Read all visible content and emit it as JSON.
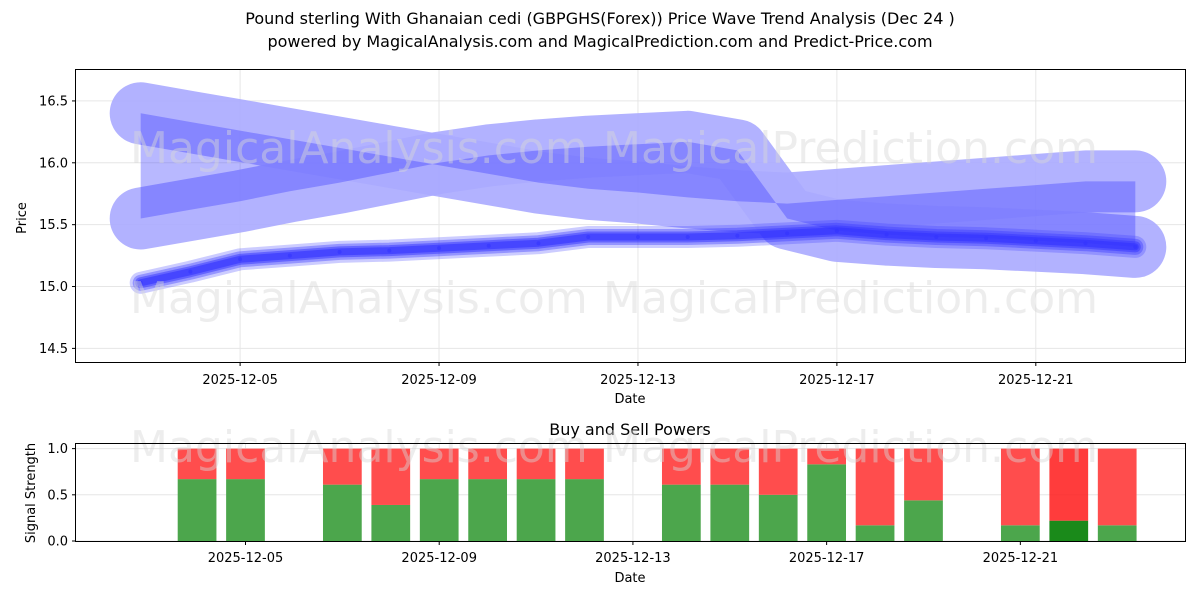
{
  "title_line1": "Pound sterling With Ghanaian cedi (GBPGHS(Forex)) Price Wave Trend Analysis (Dec 24 )",
  "title_line2": "powered by MagicalAnalysis.com and MagicalPrediction.com and Predict-Price.com",
  "watermarks": [
    "MagicalAnalysis.com",
    "MagicalPrediction.com"
  ],
  "colors": {
    "band": "#aaaaff",
    "line": "#3333ff",
    "buy": "#4ca64c",
    "sell": "#ff4d4d",
    "buy_strong": "#1a8a1a",
    "sell_strong": "#ff1a1a"
  },
  "chart_data": [
    {
      "type": "line",
      "title": "",
      "xlabel": "Date",
      "ylabel": "Price",
      "ylim": [
        14.39,
        16.75
      ],
      "xlim": [
        "2025-12-01.7",
        "2025-12-24.0"
      ],
      "grid": true,
      "xticks": [
        "2025-12-05",
        "2025-12-09",
        "2025-12-13",
        "2025-12-17",
        "2025-12-21"
      ],
      "yticks": [
        14.5,
        15.0,
        15.5,
        16.0,
        16.5
      ],
      "x": [
        "2025-12-03",
        "2025-12-04",
        "2025-12-05",
        "2025-12-06",
        "2025-12-07",
        "2025-12-08",
        "2025-12-09",
        "2025-12-10",
        "2025-12-11",
        "2025-12-12",
        "2025-12-13",
        "2025-12-14",
        "2025-12-15",
        "2025-12-16",
        "2025-12-17",
        "2025-12-18",
        "2025-12-19",
        "2025-12-20",
        "2025-12-21",
        "2025-12-22",
        "2025-12-23"
      ],
      "series": [
        {
          "name": "Price",
          "values": [
            15.03,
            15.12,
            15.22,
            15.25,
            15.28,
            15.29,
            15.31,
            15.33,
            15.35,
            15.4,
            15.4,
            15.4,
            15.41,
            15.43,
            15.45,
            15.42,
            15.4,
            15.39,
            15.37,
            15.35,
            15.32
          ]
        },
        {
          "name": "Wave band upper",
          "values": [
            16.4,
            16.33,
            16.26,
            16.19,
            16.12,
            16.05,
            15.98,
            15.91,
            15.84,
            15.79,
            15.76,
            15.72,
            15.69,
            15.67,
            15.7,
            15.73,
            15.76,
            15.79,
            15.82,
            15.85,
            15.85
          ]
        },
        {
          "name": "Wave band lower",
          "values": [
            15.55,
            15.62,
            15.69,
            15.77,
            15.84,
            15.92,
            16.0,
            16.06,
            16.1,
            16.13,
            16.15,
            16.17,
            16.1,
            15.55,
            15.45,
            15.42,
            15.4,
            15.39,
            15.37,
            15.35,
            15.32
          ]
        }
      ]
    },
    {
      "type": "bar",
      "title": "Buy and Sell Powers",
      "xlabel": "Date",
      "ylabel": "Signal Strength",
      "ylim": [
        0,
        1.05
      ],
      "grid": true,
      "xticks": [
        "2025-12-05",
        "2025-12-09",
        "2025-12-13",
        "2025-12-17",
        "2025-12-21"
      ],
      "yticks": [
        0.0,
        0.5,
        1.0
      ],
      "categories": [
        "2025-12-04",
        "2025-12-05",
        "2025-12-07",
        "2025-12-08",
        "2025-12-09",
        "2025-12-10",
        "2025-12-11",
        "2025-12-12",
        "2025-12-14",
        "2025-12-15",
        "2025-12-16",
        "2025-12-17",
        "2025-12-18",
        "2025-12-19",
        "2025-12-21",
        "2025-12-22",
        "2025-12-23"
      ],
      "series": [
        {
          "name": "Buy",
          "values": [
            0.67,
            0.67,
            0.61,
            0.39,
            0.67,
            0.67,
            0.67,
            0.67,
            0.61,
            0.61,
            0.5,
            0.83,
            0.17,
            0.44,
            0.17,
            0.22,
            0.17
          ]
        },
        {
          "name": "Sell",
          "values": [
            0.33,
            0.33,
            0.39,
            0.61,
            0.33,
            0.33,
            0.33,
            0.33,
            0.39,
            0.39,
            0.5,
            0.17,
            0.83,
            0.56,
            0.83,
            0.78,
            0.83
          ]
        }
      ]
    }
  ]
}
